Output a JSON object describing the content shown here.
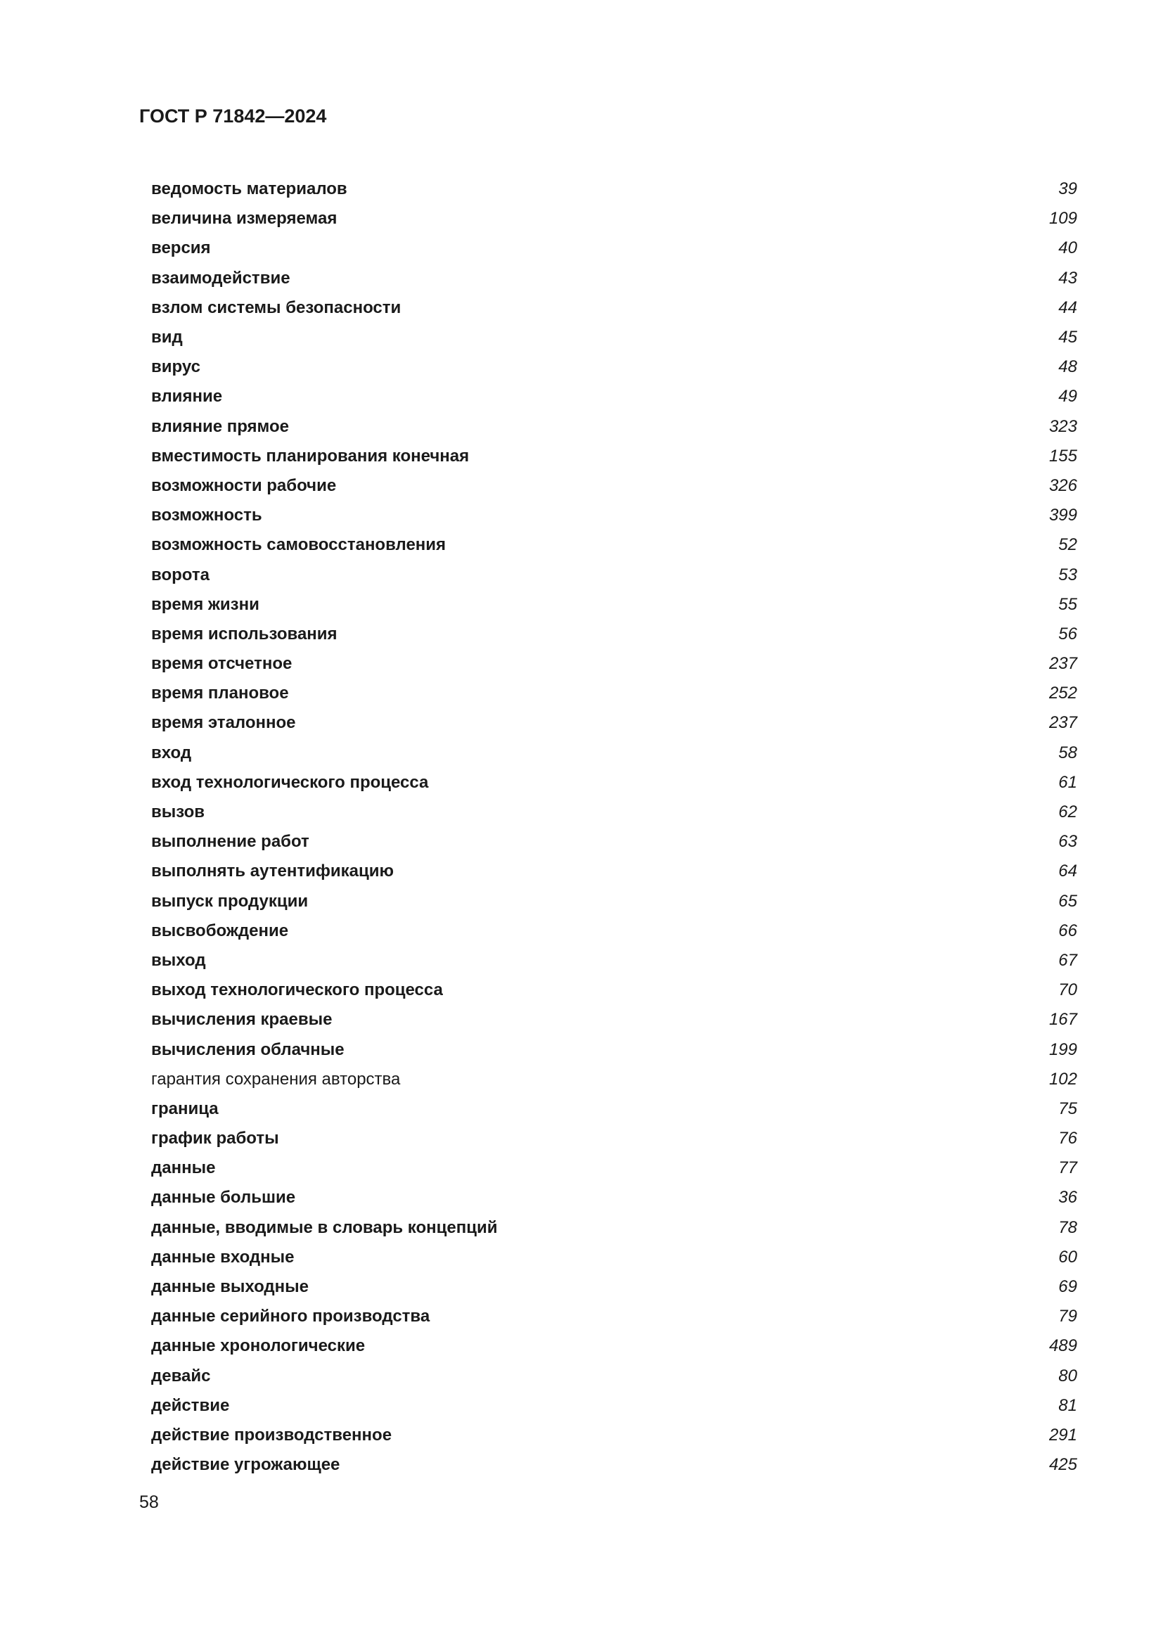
{
  "header": "ГОСТ Р 71842—2024",
  "entries": [
    {
      "term": "ведомость материалов",
      "page": "39"
    },
    {
      "term": "величина измеряемая",
      "page": "109"
    },
    {
      "term": "версия",
      "page": "40"
    },
    {
      "term": "взаимодействие",
      "page": "43"
    },
    {
      "term": "взлом системы безопасности",
      "page": "44"
    },
    {
      "term": "вид",
      "page": "45"
    },
    {
      "term": "вирус",
      "page": "48"
    },
    {
      "term": "влияние",
      "page": "49"
    },
    {
      "term": "влияние прямое",
      "page": "323"
    },
    {
      "term": "вместимость планирования конечная",
      "page": "155"
    },
    {
      "term": "возможности рабочие",
      "page": "326"
    },
    {
      "term": "возможность",
      "page": "399"
    },
    {
      "term": "возможность самовосстановления",
      "page": "52"
    },
    {
      "term": "ворота",
      "page": "53"
    },
    {
      "term": "время жизни",
      "page": "55"
    },
    {
      "term": "время использования",
      "page": "56"
    },
    {
      "term": "время отсчетное",
      "page": "237"
    },
    {
      "term": "время плановое",
      "page": "252"
    },
    {
      "term": "время эталонное",
      "page": "237"
    },
    {
      "term": "вход",
      "page": "58"
    },
    {
      "term": "вход технологического процесса",
      "page": "61"
    },
    {
      "term": "вызов",
      "page": "62"
    },
    {
      "term": "выполнение работ",
      "page": "63"
    },
    {
      "term": "выполнять аутентификацию",
      "page": "64"
    },
    {
      "term": "выпуск продукции",
      "page": "65"
    },
    {
      "term": "высвобождение",
      "page": "66"
    },
    {
      "term": "выход",
      "page": "67"
    },
    {
      "term": "выход технологического процесса",
      "page": "70"
    },
    {
      "term": "вычисления краевые",
      "page": "167"
    },
    {
      "term": "вычисления облачные",
      "page": "199"
    },
    {
      "term": "гарантия сохранения авторства",
      "page": "102",
      "normal": true
    },
    {
      "term": "граница",
      "page": "75"
    },
    {
      "term": "график работы",
      "page": "76"
    },
    {
      "term": "данные",
      "page": "77"
    },
    {
      "term": "данные большие",
      "page": "36"
    },
    {
      "term": "данные, вводимые в словарь концепций",
      "page": "78"
    },
    {
      "term": "данные входные",
      "page": "60"
    },
    {
      "term": "данные выходные",
      "page": "69"
    },
    {
      "term": "данные серийного производства",
      "page": "79"
    },
    {
      "term": "данные хронологические",
      "page": "489"
    },
    {
      "term": "девайс",
      "page": "80"
    },
    {
      "term": "действие",
      "page": "81"
    },
    {
      "term": "действие производственное",
      "page": "291"
    },
    {
      "term": "действие угрожающее",
      "page": "425"
    }
  ],
  "page_number": "58"
}
